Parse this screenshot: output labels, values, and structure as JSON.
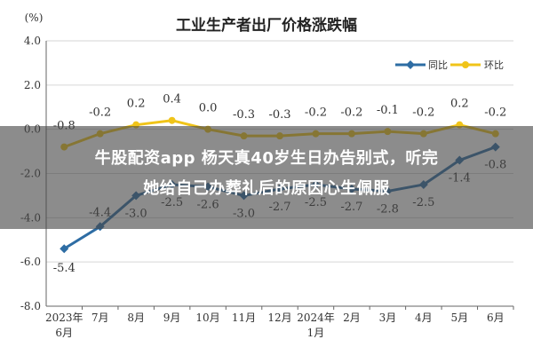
{
  "chart_data": {
    "type": "line",
    "title": "工业生产者出厂价格涨跌幅",
    "ylabel": "(%)",
    "xlabel": "",
    "ylim": [
      -8.0,
      4.0
    ],
    "yticks": [
      "4.0",
      "2.0",
      "0.0",
      "-2.0",
      "-4.0",
      "-6.0",
      "-8.0"
    ],
    "ytick_values": [
      4,
      2,
      0,
      -2,
      -4,
      -6,
      -8
    ],
    "categories": [
      [
        "2023年",
        "6月"
      ],
      [
        "7月"
      ],
      [
        "8月"
      ],
      [
        "9月"
      ],
      [
        "10月"
      ],
      [
        "11月"
      ],
      [
        "12月"
      ],
      [
        "2024年",
        "1月"
      ],
      [
        "2月"
      ],
      [
        "3月"
      ],
      [
        "4月"
      ],
      [
        "5月"
      ],
      [
        "6月"
      ]
    ],
    "grid": true,
    "legend_position": "top-right",
    "series": [
      {
        "name": "同比",
        "color": "#2e6da4",
        "values": [
          -5.4,
          -4.4,
          -3.0,
          -2.5,
          -2.6,
          -3.0,
          -2.7,
          -2.5,
          -2.7,
          -2.8,
          -2.5,
          -1.4,
          -0.8
        ],
        "labels": [
          "-5.4",
          "-4.4",
          "-3.0",
          "-2.5",
          "-2.6",
          "-3.0",
          "-2.7",
          "-2.5",
          "-2.7",
          "-2.8",
          "-2.5",
          "-1.4",
          "-0.8"
        ]
      },
      {
        "name": "环比",
        "color": "#f0c419",
        "values": [
          -0.8,
          -0.2,
          0.2,
          0.4,
          0.0,
          -0.3,
          -0.3,
          -0.2,
          -0.2,
          -0.1,
          -0.2,
          0.2,
          -0.2
        ],
        "labels": [
          "-0.8",
          "-0.2",
          "0.2",
          "0.4",
          "0.0",
          "-0.3",
          "-0.3",
          "-0.2",
          "-0.2",
          "-0.1",
          "-0.2",
          "0.2",
          "-0.2"
        ]
      }
    ]
  },
  "overlay": {
    "line1": "牛股配资app 杨天真40岁生日办告别式，听完",
    "line2": "她给自己办葬礼后的原因心生佩服"
  }
}
